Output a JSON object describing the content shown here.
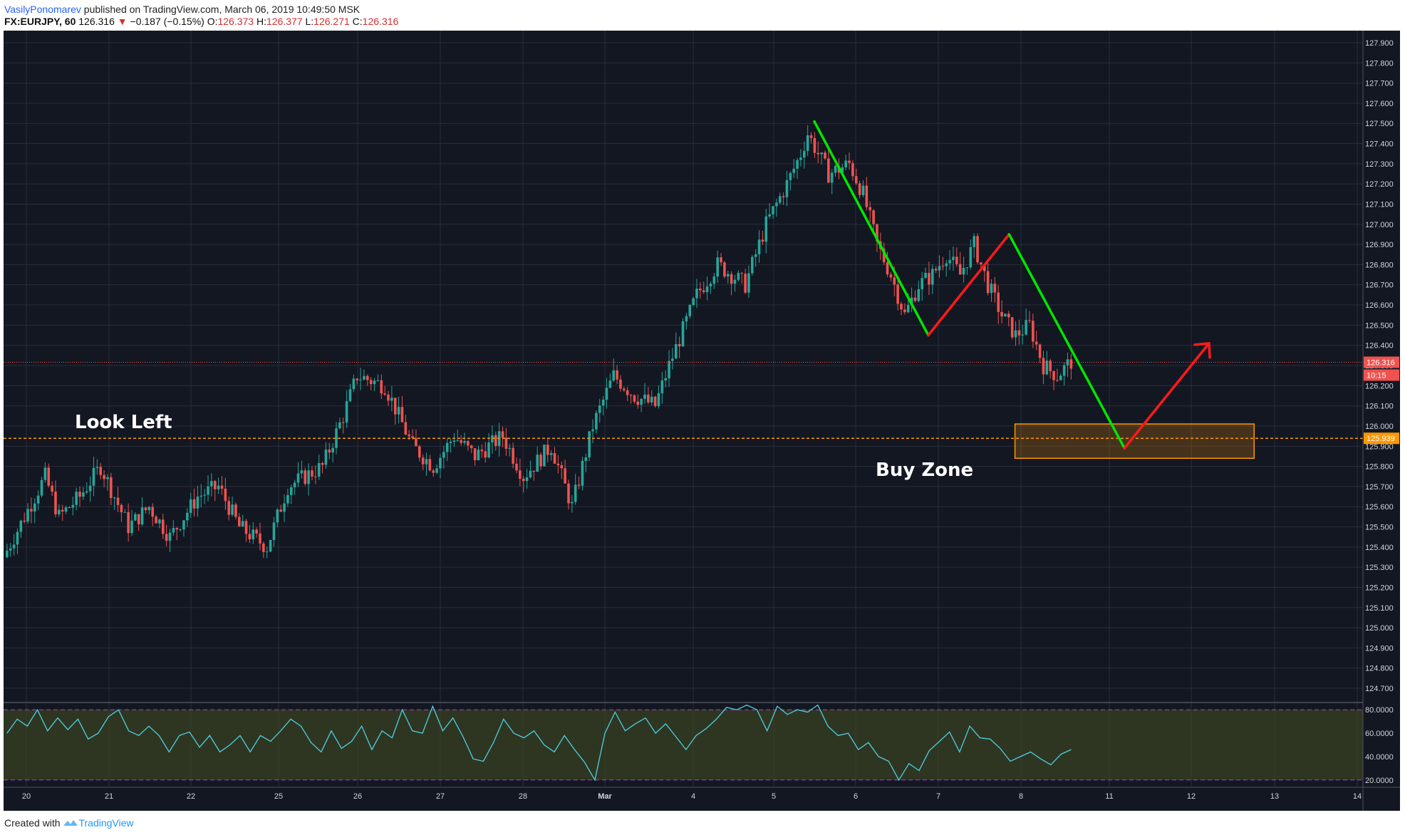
{
  "header": {
    "author": "VasilyPonomarev",
    "published_text": "published on TradingView.com, March 06, 2019 10:49:50 MSK",
    "symbol": "FX:EURJPY, 60",
    "last": "126.316",
    "change_arrow": "▼",
    "change": "−0.187 (−0.15%)",
    "open_label": "O:",
    "open": "126.373",
    "high_label": "H:",
    "high": "126.377",
    "low_label": "L:",
    "low": "126.271",
    "close_label": "C:",
    "close": "126.316"
  },
  "footer": {
    "created_with": "Created with",
    "brand": "TradingView",
    "logo_icon": "tradingview-logo-icon"
  },
  "colors": {
    "background": "#131722",
    "grid": "#2a2e39",
    "candle_up": "#26a69a",
    "candle_down": "#ef5350",
    "green_line": "#00e600",
    "red_line": "#ff1a1a",
    "support_line": "#ff9800",
    "rsi_line": "#4dd0e1",
    "rsi_band": "#3b4422",
    "rsi_bounds": "#b040c8"
  },
  "chart_data": {
    "type": "candlestick",
    "symbol": "EURJPY",
    "timeframe": "60",
    "ylim": [
      124.64,
      127.96
    ],
    "y_ticks": [
      "127.900",
      "127.800",
      "127.700",
      "127.600",
      "127.500",
      "127.400",
      "127.300",
      "127.200",
      "127.100",
      "127.000",
      "126.900",
      "126.800",
      "126.700",
      "126.600",
      "126.500",
      "126.400",
      "126.300",
      "126.200",
      "126.100",
      "126.000",
      "125.900",
      "125.800",
      "125.700",
      "125.600",
      "125.500",
      "125.400",
      "125.300",
      "125.200",
      "125.100",
      "125.000",
      "124.900",
      "124.800",
      "124.700"
    ],
    "x_ticks": [
      "20",
      "21",
      "22",
      "25",
      "26",
      "27",
      "28",
      "Mar",
      "4",
      "5",
      "6",
      "7",
      "8",
      "11",
      "12",
      "13",
      "14"
    ],
    "close_path": [
      [
        0,
        125.35
      ],
      [
        6,
        125.55
      ],
      [
        12,
        125.75
      ],
      [
        16,
        125.55
      ],
      [
        22,
        125.65
      ],
      [
        28,
        125.8
      ],
      [
        36,
        125.5
      ],
      [
        42,
        125.6
      ],
      [
        48,
        125.45
      ],
      [
        56,
        125.65
      ],
      [
        62,
        125.7
      ],
      [
        68,
        125.5
      ],
      [
        76,
        125.4
      ],
      [
        82,
        125.7
      ],
      [
        92,
        125.8
      ],
      [
        98,
        126.05
      ],
      [
        102,
        126.25
      ],
      [
        110,
        126.2
      ],
      [
        118,
        125.9
      ],
      [
        124,
        125.8
      ],
      [
        130,
        125.95
      ],
      [
        136,
        125.85
      ],
      [
        144,
        125.95
      ],
      [
        150,
        125.75
      ],
      [
        158,
        125.9
      ],
      [
        164,
        125.6
      ],
      [
        170,
        126.0
      ],
      [
        176,
        126.25
      ],
      [
        182,
        126.15
      ],
      [
        188,
        126.1
      ],
      [
        192,
        126.3
      ],
      [
        200,
        126.65
      ],
      [
        206,
        126.8
      ],
      [
        214,
        126.7
      ],
      [
        220,
        127.0
      ],
      [
        226,
        127.2
      ],
      [
        230,
        127.35
      ],
      [
        232,
        127.45
      ],
      [
        238,
        127.25
      ],
      [
        244,
        127.3
      ],
      [
        248,
        127.15
      ],
      [
        252,
        126.9
      ],
      [
        256,
        126.75
      ],
      [
        260,
        126.55
      ],
      [
        264,
        126.7
      ],
      [
        268,
        126.75
      ],
      [
        272,
        126.85
      ],
      [
        276,
        126.75
      ],
      [
        280,
        126.9
      ],
      [
        284,
        126.7
      ],
      [
        288,
        126.55
      ],
      [
        292,
        126.45
      ],
      [
        296,
        126.5
      ],
      [
        300,
        126.3
      ],
      [
        304,
        126.25
      ],
      [
        308,
        126.32
      ]
    ],
    "last_price": 126.316,
    "last_price_label": "126.316",
    "countdown_label": "10:15",
    "support_level": 125.939,
    "support_label": "125.939",
    "buy_zone": {
      "x_range": [
        291.8,
        360.8
      ],
      "y_range": [
        125.84,
        126.01
      ]
    },
    "projection": {
      "green_1": [
        [
          233.9,
          127.51
        ],
        [
          266.8,
          126.45
        ]
      ],
      "red_1": [
        [
          266.8,
          126.45
        ],
        [
          290.1,
          126.95
        ]
      ],
      "green_2": [
        [
          290.1,
          126.95
        ],
        [
          323.4,
          125.89
        ]
      ],
      "red_2": [
        [
          323.4,
          125.89
        ],
        [
          347.8,
          126.41
        ]
      ]
    },
    "annotations": [
      "Look Left",
      "Buy Zone"
    ],
    "rsi": {
      "ylim": [
        15,
        85
      ],
      "ticks": [
        "80.0000",
        "60.0000",
        "40.0000",
        "20.0000"
      ],
      "upper": 80,
      "lower": 20,
      "values": [
        60,
        72,
        66,
        80,
        62,
        73,
        63,
        72,
        55,
        60,
        74,
        80,
        62,
        58,
        66,
        58,
        44,
        58,
        61,
        48,
        58,
        44,
        50,
        58,
        44,
        58,
        53,
        62,
        72,
        66,
        52,
        44,
        62,
        47,
        53,
        66,
        46,
        62,
        56,
        80,
        62,
        60,
        83,
        62,
        73,
        57,
        38,
        36,
        52,
        72,
        60,
        56,
        62,
        50,
        44,
        58,
        46,
        35,
        20,
        60,
        78,
        62,
        68,
        73,
        60,
        68,
        57,
        46,
        58,
        64,
        72,
        82,
        80,
        84,
        80,
        62,
        83,
        76,
        80,
        78,
        84,
        66,
        58,
        60,
        46,
        52,
        40,
        36,
        20,
        34,
        28,
        45,
        53,
        61,
        44,
        66,
        56,
        55,
        47,
        36,
        40,
        44,
        38,
        33,
        42,
        46
      ]
    }
  }
}
